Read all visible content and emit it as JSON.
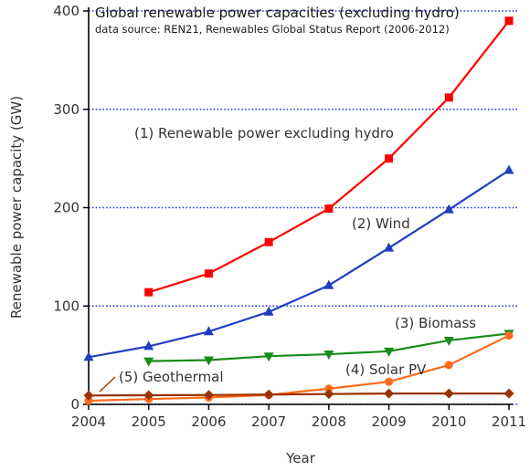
{
  "chart_data": {
    "type": "line",
    "title": "Global renewable power capacities (excluding hydro)",
    "subtitle": "data source: REN21, Renewables Global Status Report (2006-2012)",
    "xlabel": "Year",
    "ylabel": "Renewable power capacity (GW)",
    "xlim": [
      2004,
      2011
    ],
    "ylim": [
      0,
      400
    ],
    "x_ticks": [
      2004,
      2005,
      2006,
      2007,
      2008,
      2009,
      2010,
      2011
    ],
    "y_ticks": [
      0,
      100,
      200,
      300,
      400
    ],
    "grid": "horizontal dotted",
    "series": [
      {
        "name": "(1) Renewable power excluding hydro",
        "color": "#ff0000",
        "marker": "square",
        "x": [
          2005,
          2006,
          2007,
          2008,
          2009,
          2010,
          2011
        ],
        "values": [
          114,
          133,
          165,
          199,
          250,
          312,
          390
        ]
      },
      {
        "name": "(2) Wind",
        "color": "#1f3fbf",
        "marker": "triangle-up",
        "x": [
          2004,
          2005,
          2006,
          2007,
          2008,
          2009,
          2010,
          2011
        ],
        "values": [
          48,
          59,
          74,
          94,
          121,
          159,
          198,
          238
        ]
      },
      {
        "name": "(3) Biomass",
        "color": "#1a8c1a",
        "marker": "triangle-down",
        "x": [
          2005,
          2006,
          2007,
          2008,
          2009,
          2010,
          2011
        ],
        "values": [
          44,
          45,
          49,
          51,
          54,
          65,
          72
        ]
      },
      {
        "name": "(4) Solar PV",
        "color": "#ff6a1a",
        "marker": "circle",
        "x": [
          2004,
          2005,
          2006,
          2007,
          2008,
          2009,
          2010,
          2011
        ],
        "values": [
          3.7,
          5.4,
          7,
          9.5,
          16,
          23,
          40,
          70
        ]
      },
      {
        "name": "(5) Geothermal",
        "color": "#993300",
        "marker": "diamond",
        "x": [
          2004,
          2005,
          2006,
          2007,
          2008,
          2009,
          2010,
          2011
        ],
        "values": [
          9,
          9.3,
          9.5,
          10,
          10.5,
          11,
          11,
          11
        ]
      }
    ]
  }
}
